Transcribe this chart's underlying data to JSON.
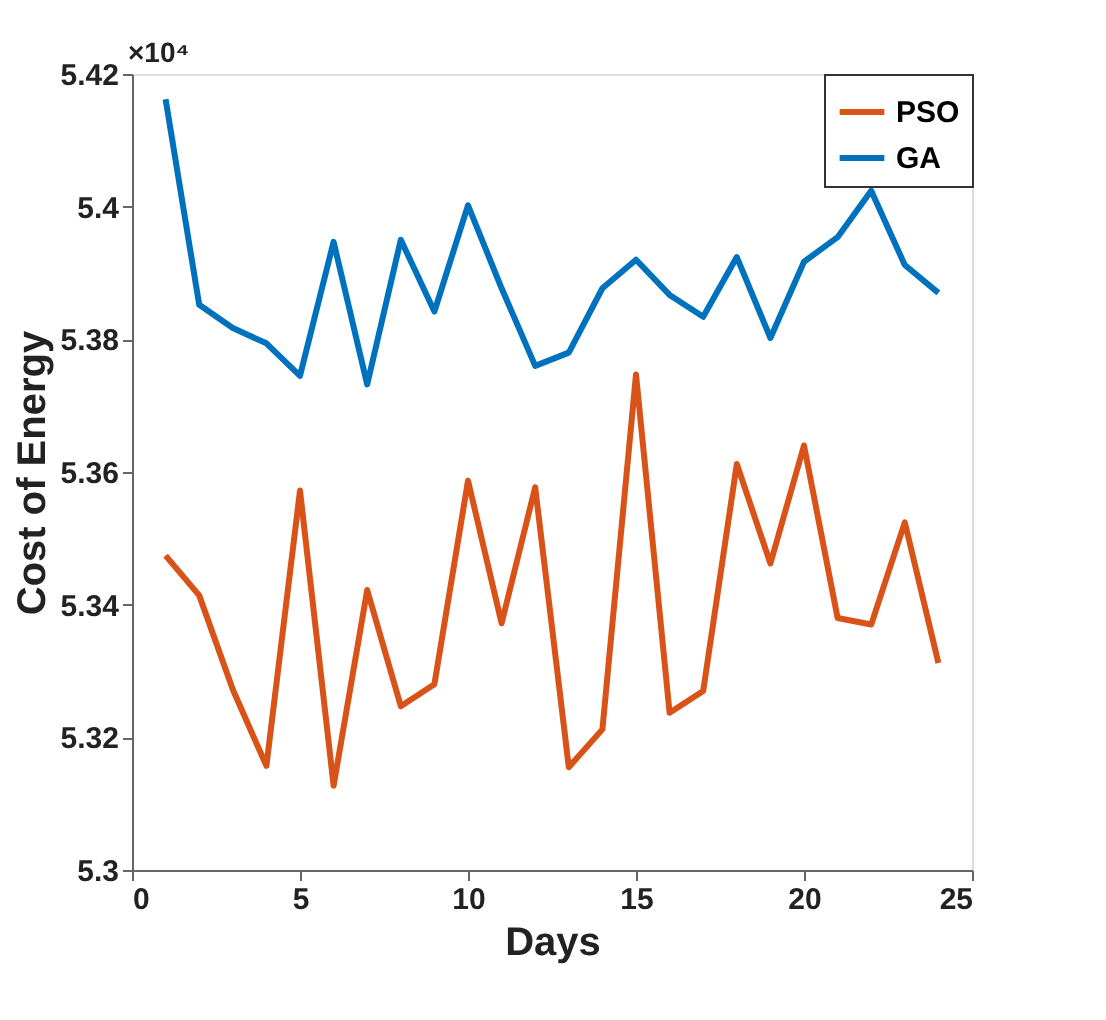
{
  "chart_data": {
    "type": "line",
    "xlabel": "Days",
    "ylabel": "Cost of Energy",
    "annotations": [
      "×10⁴"
    ],
    "x": [
      1,
      2,
      3,
      4,
      5,
      6,
      7,
      8,
      9,
      10,
      11,
      12,
      13,
      14,
      15,
      16,
      17,
      18,
      19,
      20,
      21,
      22,
      23,
      24
    ],
    "series": [
      {
        "name": "PSO",
        "color": "#d95319",
        "values": [
          5.3474,
          5.3414,
          5.3272,
          5.3157,
          5.3572,
          5.3127,
          5.3422,
          5.3247,
          5.328,
          5.3587,
          5.3372,
          5.3577,
          5.3155,
          5.3212,
          5.3747,
          5.3237,
          5.327,
          5.3612,
          5.3462,
          5.364,
          5.338,
          5.337,
          5.3524,
          5.3312
        ]
      },
      {
        "name": "GA",
        "color": "#0072bd",
        "values": [
          5.4162,
          5.3852,
          5.3817,
          5.3794,
          5.3745,
          5.3947,
          5.3732,
          5.395,
          5.3842,
          5.4002,
          5.3877,
          5.376,
          5.378,
          5.3877,
          5.392,
          5.3867,
          5.3834,
          5.3924,
          5.3802,
          5.3917,
          5.3954,
          5.4024,
          5.3912,
          5.387
        ]
      }
    ],
    "xlim": [
      0,
      25
    ],
    "xticks": [
      0,
      5,
      10,
      15,
      20,
      25
    ],
    "ylim": [
      5.3,
      5.42
    ],
    "yticks": [
      5.3,
      5.32,
      5.34,
      5.36,
      5.38,
      5.4,
      5.42
    ],
    "legend": "top right",
    "grid": false,
    "marker": "none",
    "line_style": "solid"
  }
}
